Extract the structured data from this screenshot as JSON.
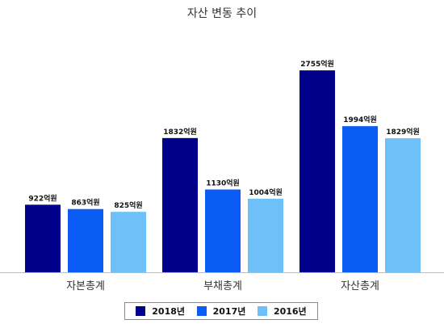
{
  "chart_data": {
    "type": "bar",
    "title": "자산 변동 추이",
    "categories": [
      "자본총계",
      "부채총계",
      "자산총계"
    ],
    "series": [
      {
        "name": "2018년",
        "values": [
          922,
          1832,
          2755
        ],
        "color": "#00008b"
      },
      {
        "name": "2017년",
        "values": [
          863,
          1130,
          1994
        ],
        "color": "#0b5cf5"
      },
      {
        "name": "2016년",
        "values": [
          825,
          1004,
          1829
        ],
        "color": "#6ec1f8"
      }
    ],
    "unit_suffix": "억원",
    "ylim": [
      0,
      3000
    ],
    "grid": false,
    "legend_position": "bottom"
  }
}
